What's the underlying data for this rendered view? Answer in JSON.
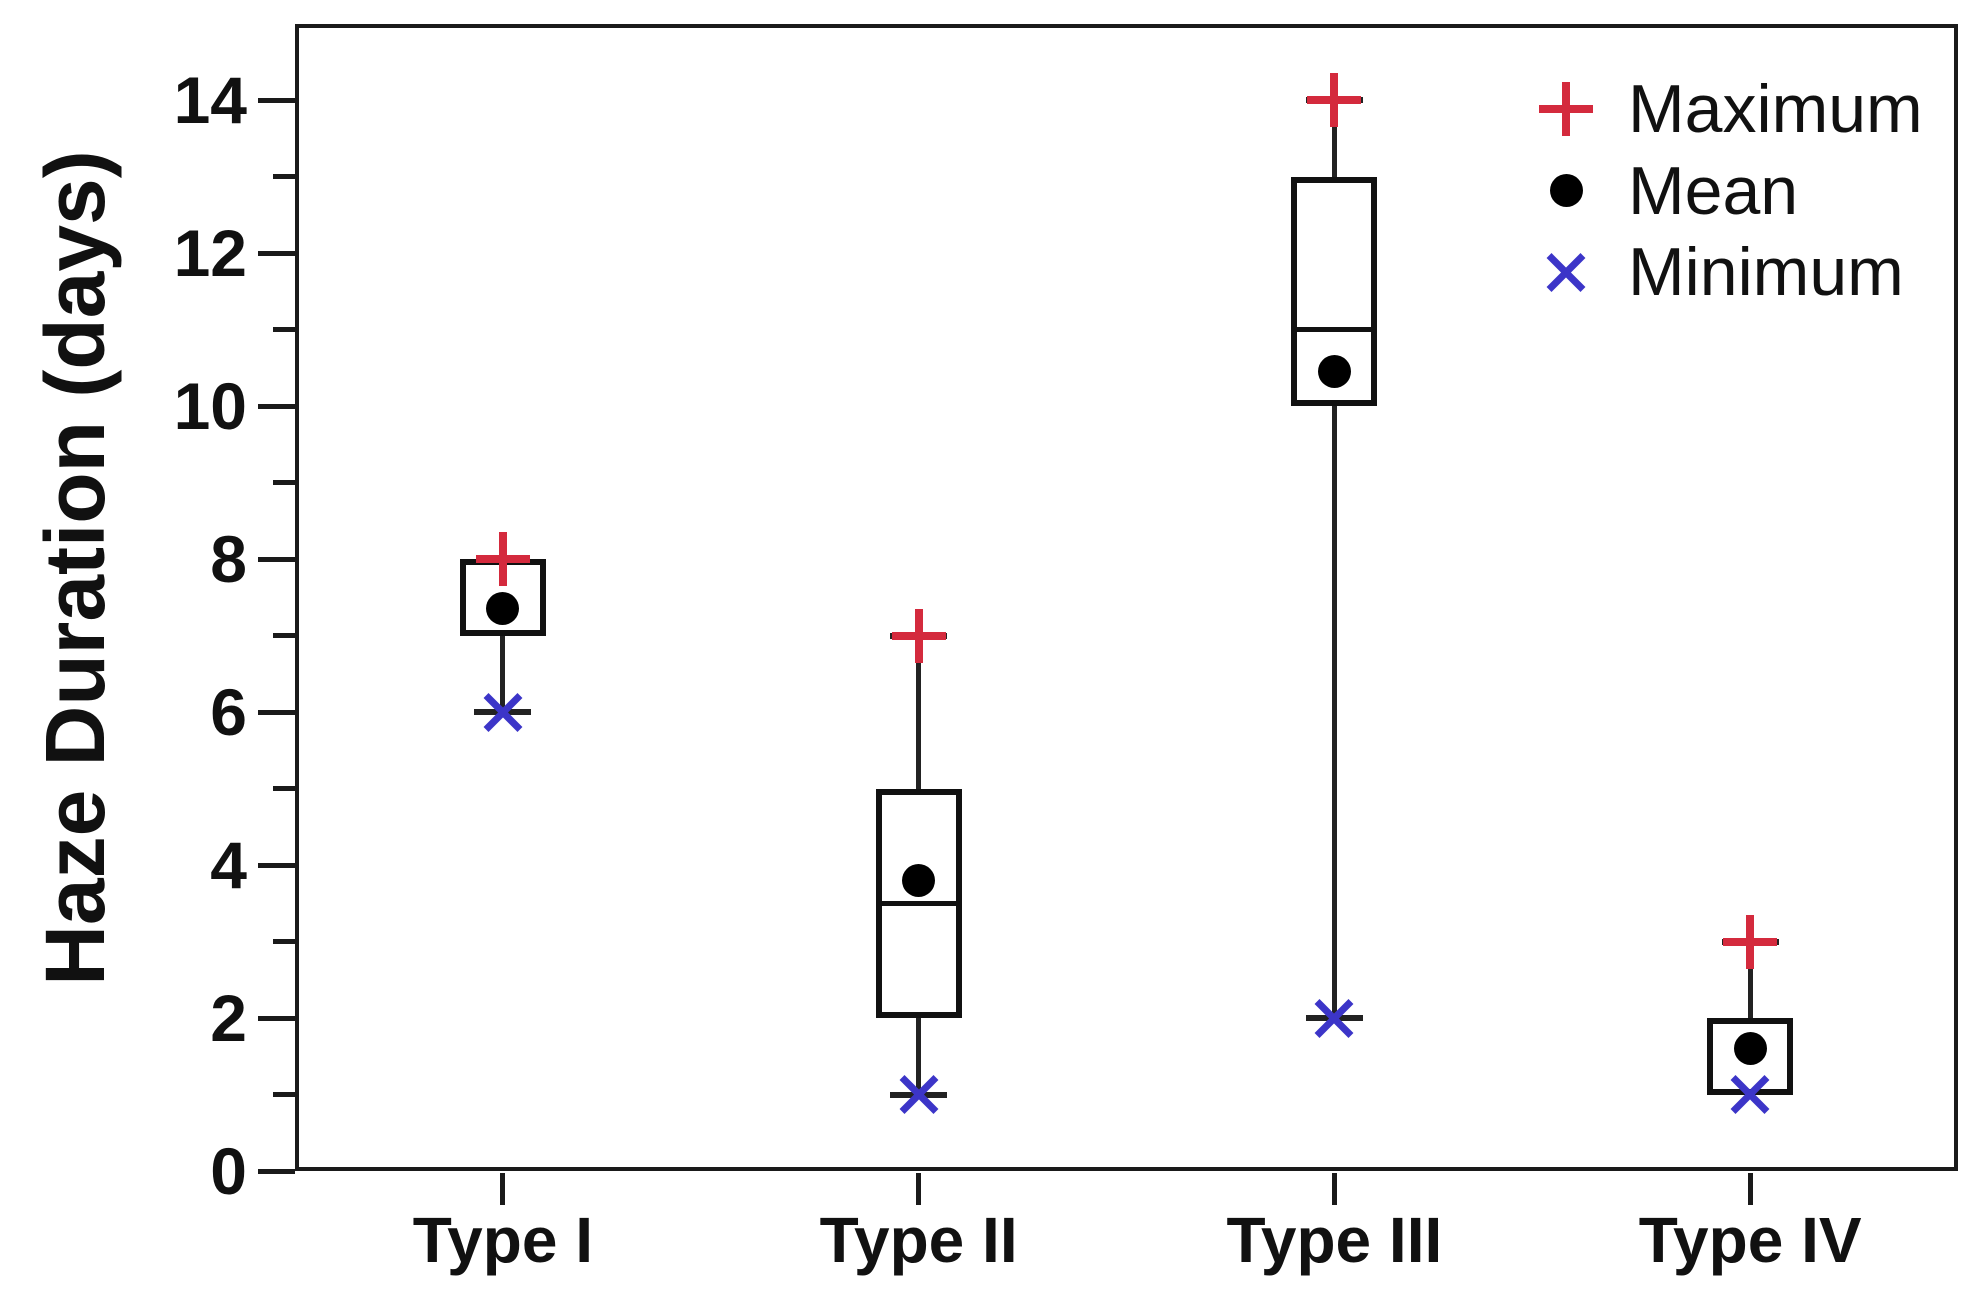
{
  "chart_data": {
    "type": "boxplot",
    "title": "",
    "ylabel": "Haze Duration (days)",
    "xlabel": "",
    "ylim": [
      0,
      15
    ],
    "ytick_major": [
      0,
      2,
      4,
      6,
      8,
      10,
      12,
      14
    ],
    "ytick_minor": [
      1,
      3,
      5,
      7,
      9,
      11,
      13
    ],
    "grid": false,
    "categories": [
      "Type I",
      "Type II",
      "Type III",
      "Type IV"
    ],
    "series": [
      {
        "category": "Type I",
        "min": 6,
        "q1": 7,
        "median": null,
        "q3": 8,
        "max": 8,
        "mean": 7.35
      },
      {
        "category": "Type II",
        "min": 1,
        "q1": 2,
        "median": 3.5,
        "q3": 5,
        "max": 7,
        "mean": 3.8
      },
      {
        "category": "Type III",
        "min": 2,
        "q1": 10,
        "median": 11,
        "q3": 13,
        "max": 14,
        "mean": 10.45
      },
      {
        "category": "Type IV",
        "min": 1,
        "q1": 1,
        "median": null,
        "q3": 2,
        "max": 3,
        "mean": 1.6
      }
    ],
    "legend": [
      {
        "label": "Maximum",
        "marker": "plus-icon",
        "color": "#d42a3d"
      },
      {
        "label": "Mean",
        "marker": "dot-icon",
        "color": "#000000"
      },
      {
        "label": "Minimum",
        "marker": "cross-icon",
        "color": "#3c35c8"
      }
    ],
    "legend_position": "top-right",
    "colors": {
      "maximum": "#d42a3d",
      "minimum": "#3c35c8",
      "mean": "#000000",
      "ink": "#1a1a1a"
    }
  }
}
